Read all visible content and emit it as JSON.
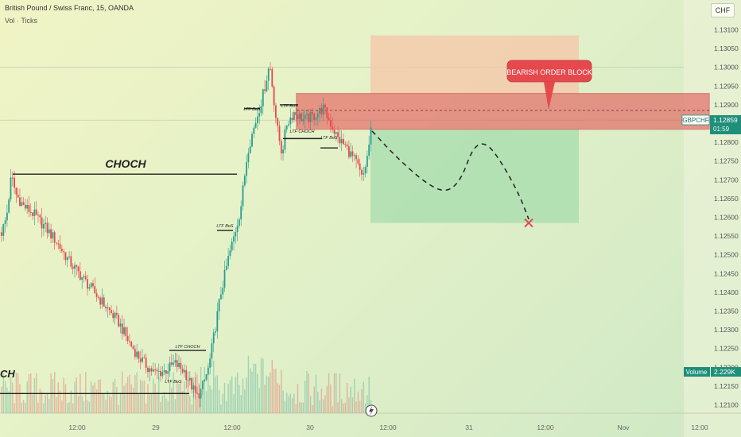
{
  "header": {
    "title": "British Pound / Swiss Franc, 15, OANDA",
    "subtitle": "Vol · Ticks"
  },
  "currency_badge": "CHF",
  "symbol_tag": {
    "name": "GBPCHF",
    "price": "1.12859",
    "countdown": "01:59"
  },
  "volume_tag": {
    "label": "Volume",
    "value": "2.229K"
  },
  "annotations": {
    "choch_main": "CHOCH",
    "choch_left": "CH",
    "ltf_bos": "LTF BoS",
    "ltf_choch": "LTF CHOCH",
    "callout": "BEARISH ORDER BLOCK"
  },
  "colors": {
    "up": "#2a9d8f",
    "down": "#e5484d",
    "order_block": "#e5484d",
    "target": "#a6dcae",
    "risk": "#f6c6a8",
    "price_tag": "#1f8f7a"
  },
  "chart_data": {
    "type": "candlestick",
    "y_ticks": [
      "1.13100",
      "1.13050",
      "1.13000",
      "1.12950",
      "1.12900",
      "1.12850",
      "1.12800",
      "1.12750",
      "1.12700",
      "1.12650",
      "1.12600",
      "1.12550",
      "1.12500",
      "1.12450",
      "1.12400",
      "1.12350",
      "1.12300",
      "1.12250",
      "1.12200",
      "1.12150",
      "1.12100"
    ],
    "x_ticks": [
      "12:00",
      "29",
      "12:00",
      "30",
      "12:00",
      "31",
      "12:00",
      "Nov",
      "12:00"
    ],
    "ylim": [
      1.12075,
      1.13125
    ],
    "last_price": 1.12859,
    "order_block": [
      1.12835,
      1.1293
    ],
    "risk_zone": [
      1.1293,
      1.13085
    ],
    "target_zone": [
      1.12585,
      1.12835
    ],
    "projection": [
      [
        0,
        1.1283
      ],
      [
        18,
        1.1276
      ],
      [
        40,
        1.1269
      ],
      [
        55,
        1.12665
      ],
      [
        66,
        1.127
      ],
      [
        75,
        1.1279
      ],
      [
        85,
        1.128
      ],
      [
        97,
        1.1274
      ],
      [
        109,
        1.1266
      ],
      [
        116,
        1.12595
      ]
    ],
    "target_mark": 1.12585,
    "segments": [
      [
        0,
        1.1256
      ],
      [
        4,
        1.126
      ],
      [
        8,
        1.1271
      ],
      [
        12,
        1.1266
      ],
      [
        18,
        1.1263
      ],
      [
        26,
        1.1261
      ],
      [
        34,
        1.1258
      ],
      [
        44,
        1.1254
      ],
      [
        56,
        1.1248
      ],
      [
        66,
        1.1244
      ],
      [
        76,
        1.124
      ],
      [
        86,
        1.1236
      ],
      [
        96,
        1.1232
      ],
      [
        104,
        1.1227
      ],
      [
        112,
        1.1223
      ],
      [
        120,
        1.122
      ],
      [
        126,
        1.12185
      ],
      [
        134,
        1.1219
      ],
      [
        142,
        1.1221
      ],
      [
        150,
        1.1219
      ],
      [
        156,
        1.1215
      ],
      [
        160,
        1.1212
      ],
      [
        164,
        1.1214
      ],
      [
        170,
        1.122
      ],
      [
        176,
        1.1232
      ],
      [
        180,
        1.124
      ],
      [
        186,
        1.1249
      ],
      [
        190,
        1.1254
      ],
      [
        196,
        1.1262
      ],
      [
        202,
        1.1278
      ],
      [
        208,
        1.1285
      ],
      [
        214,
        1.1292
      ],
      [
        220,
        1.1301
      ],
      [
        226,
        1.1284
      ],
      [
        230,
        1.1277
      ],
      [
        234,
        1.1285
      ],
      [
        240,
        1.1288
      ],
      [
        248,
        1.1286
      ],
      [
        256,
        1.1287
      ],
      [
        264,
        1.1289
      ],
      [
        270,
        1.1285
      ],
      [
        276,
        1.1281
      ],
      [
        282,
        1.1279
      ],
      [
        288,
        1.1276
      ],
      [
        292,
        1.1274
      ],
      [
        296,
        1.127
      ],
      [
        300,
        1.1276
      ],
      [
        304,
        1.1285
      ]
    ]
  }
}
